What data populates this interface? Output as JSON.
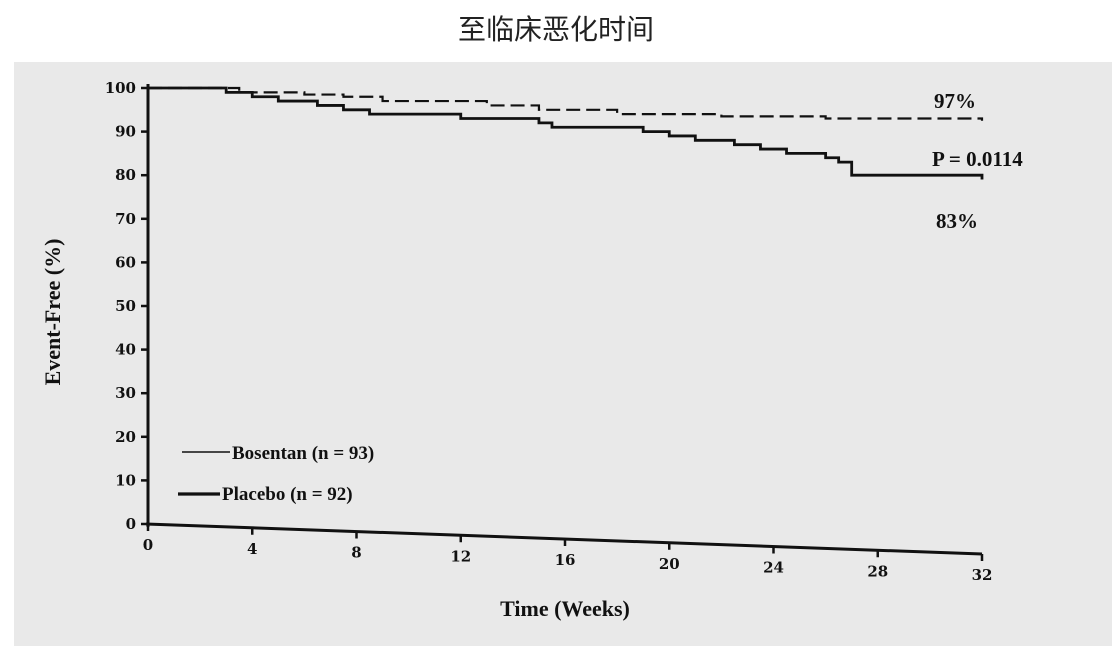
{
  "page": {
    "title": "至临床恶化时间"
  },
  "chart_data": {
    "type": "line",
    "xlabel": "Time (Weeks)",
    "ylabel": "Event-Free (%)",
    "xlim": [
      0,
      32
    ],
    "ylim": [
      0,
      100
    ],
    "x_ticks": [
      0,
      4,
      8,
      12,
      16,
      20,
      24,
      28,
      32
    ],
    "y_ticks": [
      0,
      10,
      20,
      30,
      40,
      50,
      60,
      70,
      80,
      90,
      100
    ],
    "grid": false,
    "legend_position": "bottom-left",
    "series": [
      {
        "name": "Bosentan (n = 93)",
        "style": "dashed",
        "color": "#111111",
        "x": [
          0,
          3.5,
          6,
          7.5,
          9,
          12,
          13,
          15,
          18,
          22,
          26,
          32
        ],
        "y": [
          100,
          99,
          98.5,
          98,
          97,
          97,
          96,
          95,
          94,
          93.5,
          93,
          92.5
        ]
      },
      {
        "name": "Placebo (n = 92)",
        "style": "solid",
        "color": "#111111",
        "x": [
          0,
          3,
          4,
          5,
          6.5,
          7.5,
          8.5,
          12,
          15,
          15.5,
          19,
          20,
          21,
          22.5,
          23.5,
          24.5,
          26,
          26.5,
          27,
          32
        ],
        "y": [
          100,
          99,
          98,
          97,
          96,
          95,
          94,
          93,
          92,
          91,
          90,
          89,
          88,
          87,
          86,
          85,
          84,
          83,
          80,
          79
        ]
      }
    ],
    "annotations": [
      "97%",
      "P = 0.0114",
      "83%"
    ]
  }
}
